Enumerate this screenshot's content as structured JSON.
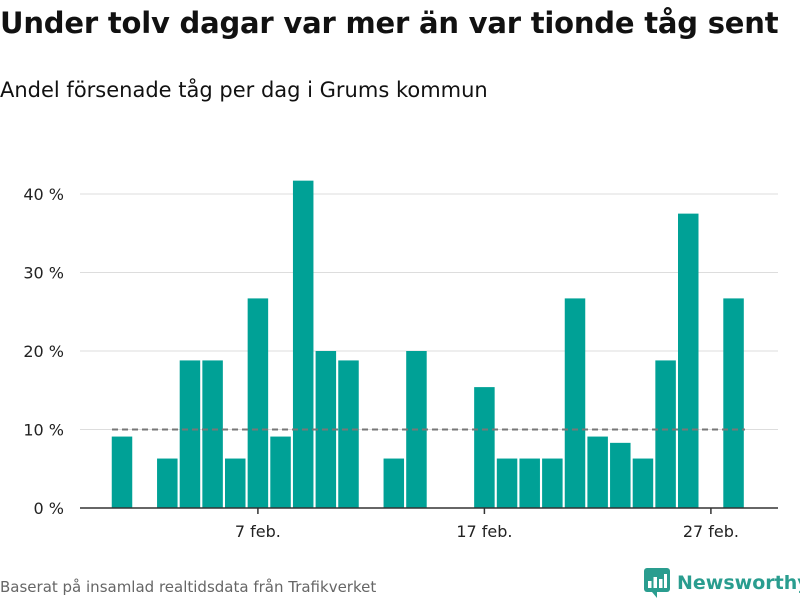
{
  "title": "Under tolv dagar var mer än var tionde tåg sent",
  "subtitle": "Andel försenade tåg per dag i Grums kommun",
  "source": "Baserat på insamlad realtidsdata från Trafikverket",
  "brand": {
    "name": "Newsworthy",
    "icon": "newsworthy-logo-icon",
    "color": "#2a9d8f"
  },
  "chart_data": {
    "type": "bar",
    "x": [
      1,
      2,
      3,
      4,
      5,
      6,
      7,
      8,
      9,
      10,
      11,
      12,
      13,
      14,
      15,
      16,
      17,
      18,
      19,
      20,
      21,
      22,
      23,
      24,
      25,
      26,
      27,
      28
    ],
    "values": [
      9.1,
      0,
      6.3,
      18.8,
      18.8,
      6.3,
      26.7,
      9.1,
      41.7,
      20,
      18.8,
      0,
      6.3,
      20,
      0,
      0,
      15.4,
      6.3,
      6.3,
      6.3,
      26.7,
      9.1,
      8.3,
      6.3,
      18.8,
      37.5,
      0,
      26.7
    ],
    "x_ticks": [
      {
        "x": 7,
        "label": "7 feb."
      },
      {
        "x": 17,
        "label": "17 feb."
      },
      {
        "x": 27,
        "label": "27 feb."
      }
    ],
    "y_ticks": [
      {
        "value": 0,
        "label": "0 %"
      },
      {
        "value": 10,
        "label": "10 %"
      },
      {
        "value": 20,
        "label": "20 %"
      },
      {
        "value": 30,
        "label": "30 %"
      },
      {
        "value": 40,
        "label": "40 %"
      }
    ],
    "ylim": [
      0,
      44
    ],
    "xlim": [
      0.5,
      28.5
    ],
    "reference_line": {
      "value": 10,
      "style": "dashed"
    },
    "bar_color": "#00a196",
    "grid": true
  }
}
